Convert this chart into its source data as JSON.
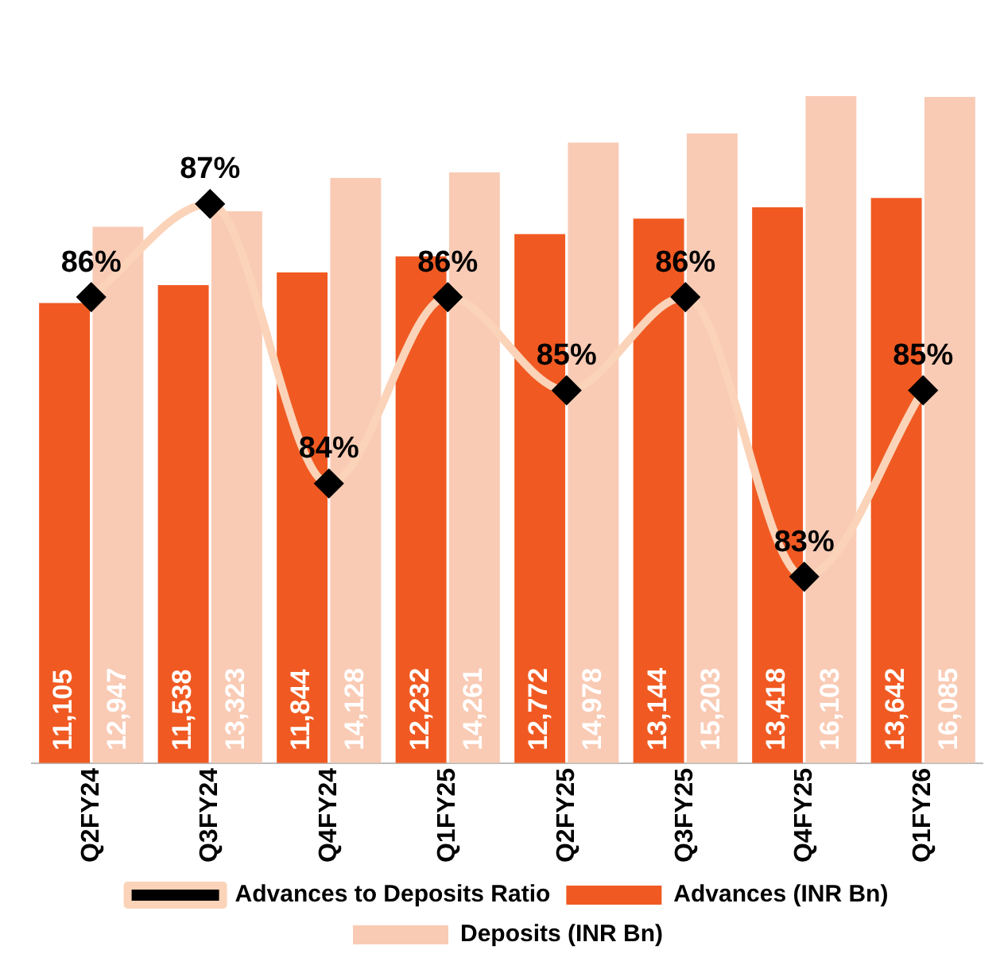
{
  "chart_data": {
    "type": "bar",
    "categories": [
      "Q2FY24",
      "Q3FY24",
      "Q4FY24",
      "Q1FY25",
      "Q2FY25",
      "Q3FY25",
      "Q4FY25",
      "Q1FY26"
    ],
    "series": [
      {
        "name": "Advances (INR Bn)",
        "color": "#f05a22",
        "values": [
          11105,
          11538,
          11844,
          12232,
          12772,
          13144,
          13418,
          13642
        ],
        "value_labels": [
          "11,105",
          "11,538",
          "11,844",
          "12,232",
          "12,772",
          "13,144",
          "13,418",
          "13,642"
        ]
      },
      {
        "name": "Deposits (INR Bn)",
        "color": "#f9cbb5",
        "values": [
          12947,
          13323,
          14128,
          14261,
          14978,
          15203,
          16103,
          16085
        ],
        "value_labels": [
          "12,947",
          "13,323",
          "14,128",
          "14,261",
          "14,978",
          "15,203",
          "16,103",
          "16,085"
        ]
      },
      {
        "name": "Advances to Deposits Ratio",
        "type": "line",
        "axis": "y2",
        "color": "#fbd3b8",
        "marker": "diamond",
        "values": [
          86,
          87,
          84,
          86,
          85,
          86,
          83,
          85
        ],
        "value_labels": [
          "86%",
          "87%",
          "84%",
          "86%",
          "85%",
          "86%",
          "83%",
          "85%"
        ]
      }
    ],
    "legend": "bottom"
  }
}
